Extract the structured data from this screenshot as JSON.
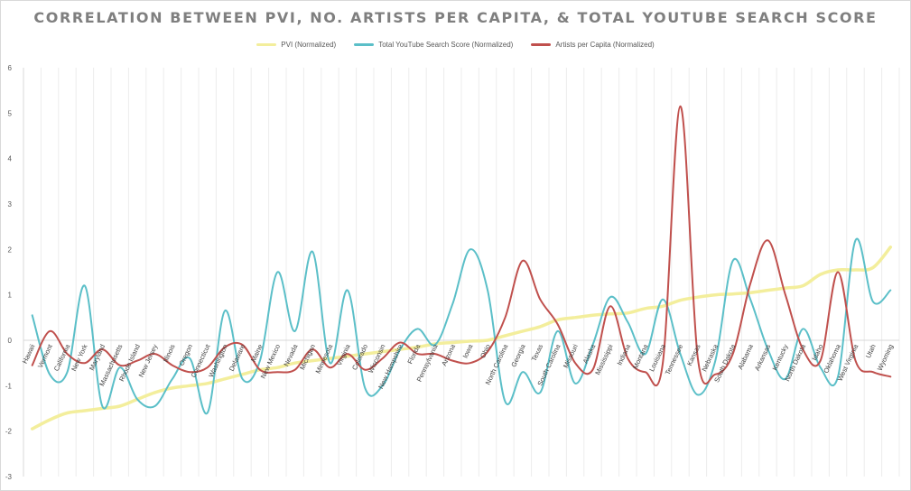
{
  "chart_data": {
    "type": "line",
    "title": "CORRELATION BETWEEN PVI, NO. ARTISTS PER CAPITA, & TOTAL YOUTUBE SEARCH SCORE",
    "xlabel": "",
    "ylabel": "",
    "ylim": [
      -3,
      6
    ],
    "yticks": [
      -3,
      -2,
      -1,
      0,
      1,
      2,
      3,
      4,
      5,
      6
    ],
    "grid": "vertical",
    "legend": "top",
    "smooth": true,
    "categories": [
      "Hawaii",
      "Vermont",
      "California",
      "New York",
      "Maryland",
      "Massachusetts",
      "Rhode Island",
      "New Jersey",
      "Illinois",
      "Oregon",
      "Connecticut",
      "Washington",
      "Delaware",
      "Maine",
      "New Mexico",
      "Nevada",
      "Michigan",
      "Minnesota",
      "Virginia",
      "Colorado",
      "Wisconsin",
      "New Hampshire",
      "Florida",
      "Pennsylvania",
      "Arizona",
      "Iowa",
      "Ohio",
      "North Carolina",
      "Georgia",
      "Texas",
      "South Carolina",
      "Missouri",
      "Alaska",
      "Mississippi",
      "Indiana",
      "Montana",
      "Louisiana",
      "Tennessee",
      "Kansas",
      "Nebraska",
      "South Dakota",
      "Alabama",
      "Arkansas",
      "Kentucky",
      "North Dakota",
      "Idaho",
      "Oklahoma",
      "West Virginia",
      "Utah",
      "Wyoming"
    ],
    "series": [
      {
        "name": "PVI (Normalized)",
        "color": "#f3ee9c",
        "values": [
          -1.95,
          -1.75,
          -1.6,
          -1.55,
          -1.5,
          -1.45,
          -1.3,
          -1.15,
          -1.05,
          -1.0,
          -0.95,
          -0.85,
          -0.75,
          -0.65,
          -0.6,
          -0.5,
          -0.45,
          -0.4,
          -0.35,
          -0.3,
          -0.25,
          -0.2,
          -0.15,
          -0.08,
          -0.05,
          -0.02,
          0.0,
          0.1,
          0.2,
          0.3,
          0.45,
          0.5,
          0.55,
          0.58,
          0.6,
          0.7,
          0.75,
          0.88,
          0.95,
          1.0,
          1.02,
          1.05,
          1.1,
          1.15,
          1.2,
          1.45,
          1.55,
          1.55,
          1.6,
          2.05
        ]
      },
      {
        "name": "Total YouTube Search Score (Normalized)",
        "color": "#5bbfc8",
        "values": [
          0.55,
          -0.75,
          -0.7,
          1.2,
          -1.45,
          -0.6,
          -1.3,
          -1.45,
          -0.85,
          -0.4,
          -1.6,
          0.65,
          -0.85,
          -0.45,
          1.5,
          0.2,
          1.95,
          -0.5,
          1.1,
          -1.05,
          -1.0,
          -0.2,
          0.25,
          -0.1,
          0.8,
          2.0,
          1.1,
          -1.35,
          -0.7,
          -1.15,
          0.2,
          -0.95,
          -0.1,
          0.95,
          0.4,
          -0.3,
          0.9,
          -0.3,
          -1.2,
          -0.45,
          1.75,
          0.9,
          -0.2,
          -0.85,
          0.25,
          -0.6,
          -0.8,
          2.2,
          0.85,
          1.1
        ]
      },
      {
        "name": "Artists per Capita (Normalized)",
        "color": "#c0504d",
        "values": [
          -0.55,
          0.2,
          -0.3,
          -0.5,
          -0.2,
          -0.55,
          -0.45,
          -0.3,
          -0.55,
          -0.7,
          -0.6,
          -0.15,
          -0.1,
          -0.65,
          -0.7,
          -0.65,
          -0.2,
          -0.6,
          -0.3,
          -0.65,
          -0.4,
          -0.05,
          -0.3,
          -0.3,
          -0.45,
          -0.5,
          -0.25,
          0.5,
          1.75,
          0.9,
          0.35,
          -0.5,
          -0.65,
          0.75,
          -0.4,
          -0.7,
          -0.5,
          5.15,
          -0.4,
          -0.75,
          -0.3,
          1.25,
          2.2,
          1.0,
          -0.2,
          -0.45,
          1.5,
          -0.45,
          -0.7,
          -0.8
        ]
      }
    ]
  }
}
